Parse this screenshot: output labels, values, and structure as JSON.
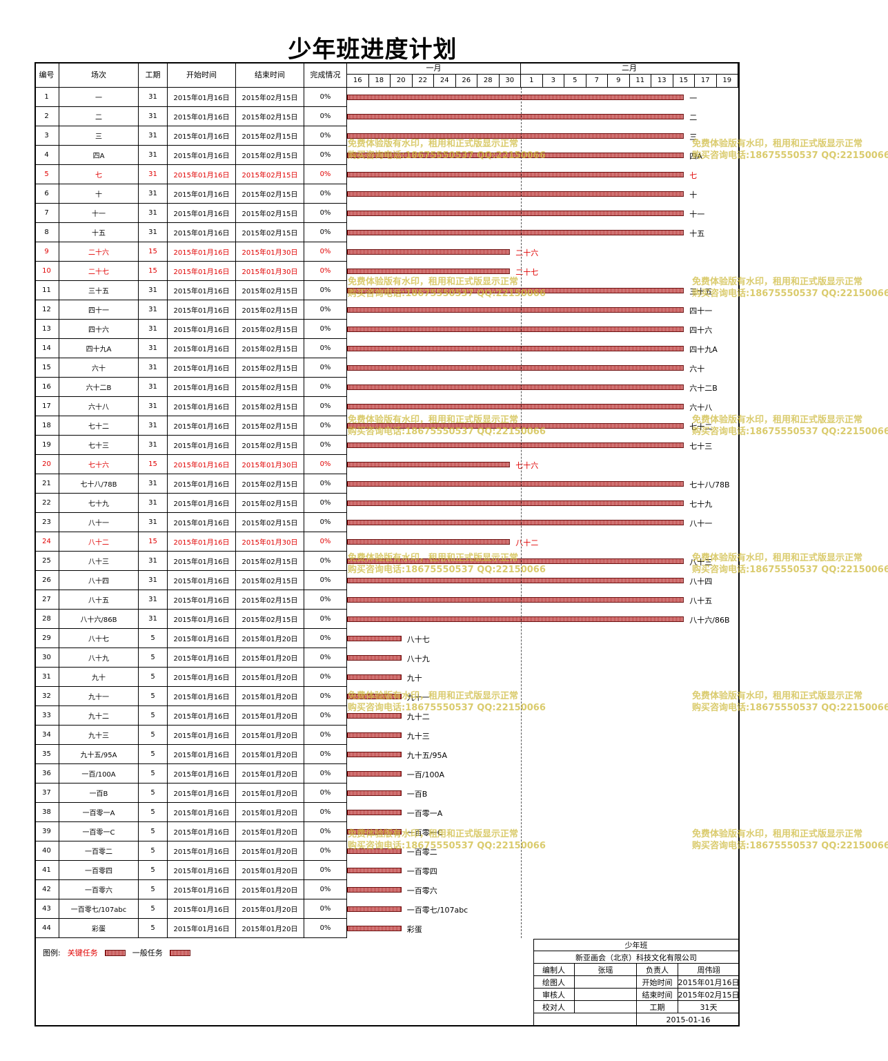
{
  "title": "少年班进度计划",
  "headers": {
    "no": "编号",
    "name": "场次",
    "duration": "工期",
    "start": "开始时间",
    "end": "结束时间",
    "status": "完成情况"
  },
  "months": [
    "一月",
    "二月"
  ],
  "days": [
    "16",
    "18",
    "20",
    "22",
    "24",
    "26",
    "28",
    "30",
    "1",
    "3",
    "5",
    "7",
    "9",
    "11",
    "13",
    "15",
    "17",
    "19"
  ],
  "rows": [
    {
      "no": "1",
      "name": "一",
      "dur": "31",
      "start": "2015年01月16日",
      "end": "2015年02月15日",
      "status": "0%",
      "crit": false,
      "days": 31
    },
    {
      "no": "2",
      "name": "二",
      "dur": "31",
      "start": "2015年01月16日",
      "end": "2015年02月15日",
      "status": "0%",
      "crit": false,
      "days": 31
    },
    {
      "no": "3",
      "name": "三",
      "dur": "31",
      "start": "2015年01月16日",
      "end": "2015年02月15日",
      "status": "0%",
      "crit": false,
      "days": 31
    },
    {
      "no": "4",
      "name": "四A",
      "dur": "31",
      "start": "2015年01月16日",
      "end": "2015年02月15日",
      "status": "0%",
      "crit": false,
      "days": 31
    },
    {
      "no": "5",
      "name": "七",
      "dur": "31",
      "start": "2015年01月16日",
      "end": "2015年02月15日",
      "status": "0%",
      "crit": true,
      "days": 31
    },
    {
      "no": "6",
      "name": "十",
      "dur": "31",
      "start": "2015年01月16日",
      "end": "2015年02月15日",
      "status": "0%",
      "crit": false,
      "days": 31
    },
    {
      "no": "7",
      "name": "十一",
      "dur": "31",
      "start": "2015年01月16日",
      "end": "2015年02月15日",
      "status": "0%",
      "crit": false,
      "days": 31
    },
    {
      "no": "8",
      "name": "十五",
      "dur": "31",
      "start": "2015年01月16日",
      "end": "2015年02月15日",
      "status": "0%",
      "crit": false,
      "days": 31
    },
    {
      "no": "9",
      "name": "二十六",
      "dur": "15",
      "start": "2015年01月16日",
      "end": "2015年01月30日",
      "status": "0%",
      "crit": true,
      "days": 15
    },
    {
      "no": "10",
      "name": "二十七",
      "dur": "15",
      "start": "2015年01月16日",
      "end": "2015年01月30日",
      "status": "0%",
      "crit": true,
      "days": 15
    },
    {
      "no": "11",
      "name": "三十五",
      "dur": "31",
      "start": "2015年01月16日",
      "end": "2015年02月15日",
      "status": "0%",
      "crit": false,
      "days": 31
    },
    {
      "no": "12",
      "name": "四十一",
      "dur": "31",
      "start": "2015年01月16日",
      "end": "2015年02月15日",
      "status": "0%",
      "crit": false,
      "days": 31
    },
    {
      "no": "13",
      "name": "四十六",
      "dur": "31",
      "start": "2015年01月16日",
      "end": "2015年02月15日",
      "status": "0%",
      "crit": false,
      "days": 31
    },
    {
      "no": "14",
      "name": "四十九A",
      "dur": "31",
      "start": "2015年01月16日",
      "end": "2015年02月15日",
      "status": "0%",
      "crit": false,
      "days": 31
    },
    {
      "no": "15",
      "name": "六十",
      "dur": "31",
      "start": "2015年01月16日",
      "end": "2015年02月15日",
      "status": "0%",
      "crit": false,
      "days": 31
    },
    {
      "no": "16",
      "name": "六十二B",
      "dur": "31",
      "start": "2015年01月16日",
      "end": "2015年02月15日",
      "status": "0%",
      "crit": false,
      "days": 31
    },
    {
      "no": "17",
      "name": "六十八",
      "dur": "31",
      "start": "2015年01月16日",
      "end": "2015年02月15日",
      "status": "0%",
      "crit": false,
      "days": 31
    },
    {
      "no": "18",
      "name": "七十二",
      "dur": "31",
      "start": "2015年01月16日",
      "end": "2015年02月15日",
      "status": "0%",
      "crit": false,
      "days": 31
    },
    {
      "no": "19",
      "name": "七十三",
      "dur": "31",
      "start": "2015年01月16日",
      "end": "2015年02月15日",
      "status": "0%",
      "crit": false,
      "days": 31
    },
    {
      "no": "20",
      "name": "七十六",
      "dur": "15",
      "start": "2015年01月16日",
      "end": "2015年01月30日",
      "status": "0%",
      "crit": true,
      "days": 15
    },
    {
      "no": "21",
      "name": "七十八/78B",
      "dur": "31",
      "start": "2015年01月16日",
      "end": "2015年02月15日",
      "status": "0%",
      "crit": false,
      "days": 31
    },
    {
      "no": "22",
      "name": "七十九",
      "dur": "31",
      "start": "2015年01月16日",
      "end": "2015年02月15日",
      "status": "0%",
      "crit": false,
      "days": 31
    },
    {
      "no": "23",
      "name": "八十一",
      "dur": "31",
      "start": "2015年01月16日",
      "end": "2015年02月15日",
      "status": "0%",
      "crit": false,
      "days": 31
    },
    {
      "no": "24",
      "name": "八十二",
      "dur": "15",
      "start": "2015年01月16日",
      "end": "2015年01月30日",
      "status": "0%",
      "crit": true,
      "days": 15
    },
    {
      "no": "25",
      "name": "八十三",
      "dur": "31",
      "start": "2015年01月16日",
      "end": "2015年02月15日",
      "status": "0%",
      "crit": false,
      "days": 31
    },
    {
      "no": "26",
      "name": "八十四",
      "dur": "31",
      "start": "2015年01月16日",
      "end": "2015年02月15日",
      "status": "0%",
      "crit": false,
      "days": 31
    },
    {
      "no": "27",
      "name": "八十五",
      "dur": "31",
      "start": "2015年01月16日",
      "end": "2015年02月15日",
      "status": "0%",
      "crit": false,
      "days": 31
    },
    {
      "no": "28",
      "name": "八十六/86B",
      "dur": "31",
      "start": "2015年01月16日",
      "end": "2015年02月15日",
      "status": "0%",
      "crit": false,
      "days": 31
    },
    {
      "no": "29",
      "name": "八十七",
      "dur": "5",
      "start": "2015年01月16日",
      "end": "2015年01月20日",
      "status": "0%",
      "crit": false,
      "days": 5
    },
    {
      "no": "30",
      "name": "八十九",
      "dur": "5",
      "start": "2015年01月16日",
      "end": "2015年01月20日",
      "status": "0%",
      "crit": false,
      "days": 5
    },
    {
      "no": "31",
      "name": "九十",
      "dur": "5",
      "start": "2015年01月16日",
      "end": "2015年01月20日",
      "status": "0%",
      "crit": false,
      "days": 5
    },
    {
      "no": "32",
      "name": "九十一",
      "dur": "5",
      "start": "2015年01月16日",
      "end": "2015年01月20日",
      "status": "0%",
      "crit": false,
      "days": 5
    },
    {
      "no": "33",
      "name": "九十二",
      "dur": "5",
      "start": "2015年01月16日",
      "end": "2015年01月20日",
      "status": "0%",
      "crit": false,
      "days": 5
    },
    {
      "no": "34",
      "name": "九十三",
      "dur": "5",
      "start": "2015年01月16日",
      "end": "2015年01月20日",
      "status": "0%",
      "crit": false,
      "days": 5
    },
    {
      "no": "35",
      "name": "九十五/95A",
      "dur": "5",
      "start": "2015年01月16日",
      "end": "2015年01月20日",
      "status": "0%",
      "crit": false,
      "days": 5
    },
    {
      "no": "36",
      "name": "一百/100A",
      "dur": "5",
      "start": "2015年01月16日",
      "end": "2015年01月20日",
      "status": "0%",
      "crit": false,
      "days": 5
    },
    {
      "no": "37",
      "name": "一百B",
      "dur": "5",
      "start": "2015年01月16日",
      "end": "2015年01月20日",
      "status": "0%",
      "crit": false,
      "days": 5
    },
    {
      "no": "38",
      "name": "一百零一A",
      "dur": "5",
      "start": "2015年01月16日",
      "end": "2015年01月20日",
      "status": "0%",
      "crit": false,
      "days": 5
    },
    {
      "no": "39",
      "name": "一百零一C",
      "dur": "5",
      "start": "2015年01月16日",
      "end": "2015年01月20日",
      "status": "0%",
      "crit": false,
      "days": 5
    },
    {
      "no": "40",
      "name": "一百零二",
      "dur": "5",
      "start": "2015年01月16日",
      "end": "2015年01月20日",
      "status": "0%",
      "crit": false,
      "days": 5
    },
    {
      "no": "41",
      "name": "一百零四",
      "dur": "5",
      "start": "2015年01月16日",
      "end": "2015年01月20日",
      "status": "0%",
      "crit": false,
      "days": 5
    },
    {
      "no": "42",
      "name": "一百零六",
      "dur": "5",
      "start": "2015年01月16日",
      "end": "2015年01月20日",
      "status": "0%",
      "crit": false,
      "days": 5
    },
    {
      "no": "43",
      "name": "一百零七/107abc",
      "dur": "5",
      "start": "2015年01月16日",
      "end": "2015年01月20日",
      "status": "0%",
      "crit": false,
      "days": 5
    },
    {
      "no": "44",
      "name": "彩蛋",
      "dur": "5",
      "start": "2015年01月16日",
      "end": "2015年01月20日",
      "status": "0%",
      "crit": false,
      "days": 5
    }
  ],
  "legend": {
    "prefix": "图例:",
    "critical": "关键任务",
    "normal": "一般任务"
  },
  "info": {
    "project": "少年班",
    "company": "新亚画会（北京）科技文化有限公司",
    "rows": [
      [
        "编制人",
        "张瑶",
        "负责人",
        "周伟翊"
      ],
      [
        "绘图人",
        "",
        "开始时间",
        "2015年01月16日"
      ],
      [
        "审核人",
        "",
        "结束时间",
        "2015年02月15日"
      ],
      [
        "校对人",
        "",
        "工期",
        "31天"
      ]
    ],
    "date": "2015-01-16"
  },
  "watermark": {
    "line1": "免费体验版有水印，租用和正式版显示正常",
    "line2": "购买咨询电话:18675550537 QQ:22150066"
  },
  "colors": {
    "critical_text": "#e00000",
    "bar": "#b02020"
  }
}
